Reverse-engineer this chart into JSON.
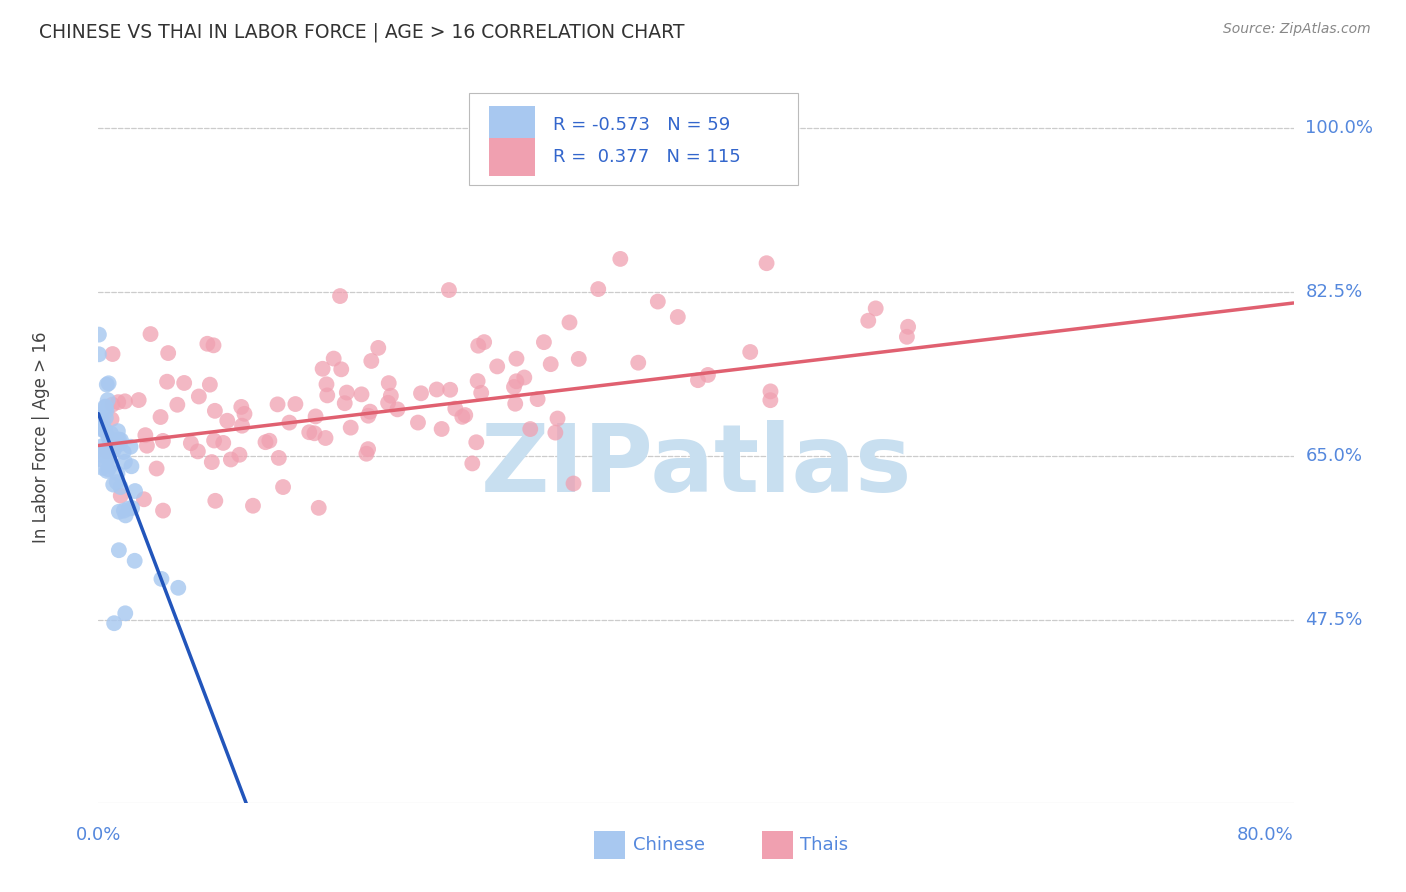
{
  "title": "CHINESE VS THAI IN LABOR FORCE | AGE > 16 CORRELATION CHART",
  "source": "Source: ZipAtlas.com",
  "xlabel_bottom_left": "0.0%",
  "xlabel_bottom_right": "80.0%",
  "ylabel": "In Labor Force | Age > 16",
  "yticks": [
    0.475,
    0.65,
    0.825,
    1.0
  ],
  "ytick_labels": [
    "47.5%",
    "65.0%",
    "82.5%",
    "100.0%"
  ],
  "xmin": 0.0,
  "xmax": 0.8,
  "ymin": 0.28,
  "ymax": 1.06,
  "chinese_R": -0.573,
  "chinese_N": 59,
  "thai_R": 0.377,
  "thai_N": 115,
  "chinese_color": "#a8c8f0",
  "thai_color": "#f0a0b0",
  "chinese_line_color": "#2255bb",
  "thai_line_color": "#e06070",
  "legend_color": "#3366cc",
  "background_color": "#ffffff",
  "grid_color": "#cccccc",
  "title_color": "#333333",
  "axis_label_color": "#5588dd",
  "watermark_color": "#c8dff0",
  "note": "Chinese x mostly 0-0.08, y ~0.60-0.75; Thai x 0-0.65, y ~0.60-0.80"
}
